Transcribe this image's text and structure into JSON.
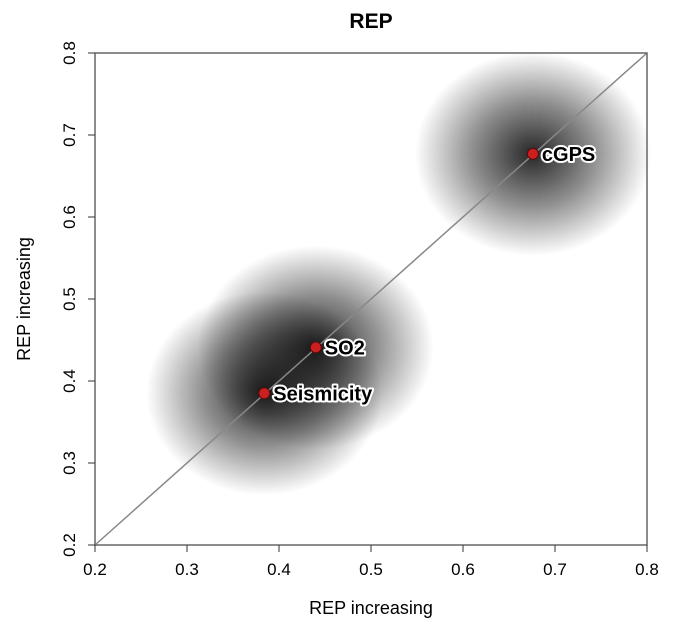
{
  "chart_data": {
    "type": "scatter",
    "title": "REP",
    "x_label": "REP increasing",
    "y_label": "REP increasing",
    "xlim": [
      0.2,
      0.8
    ],
    "ylim": [
      0.2,
      0.8
    ],
    "xticks": [
      0.2,
      0.3,
      0.4,
      0.5,
      0.6,
      0.7,
      0.8
    ],
    "yticks": [
      0.2,
      0.3,
      0.4,
      0.5,
      0.6,
      0.7,
      0.8
    ],
    "color": "#cc1f1f",
    "point_labels": [
      "cGPS",
      "SO2",
      "Seismicity"
    ],
    "x": [
      0.676,
      0.44,
      0.384
    ],
    "values": [
      0.677,
      0.441,
      0.385
    ]
  }
}
